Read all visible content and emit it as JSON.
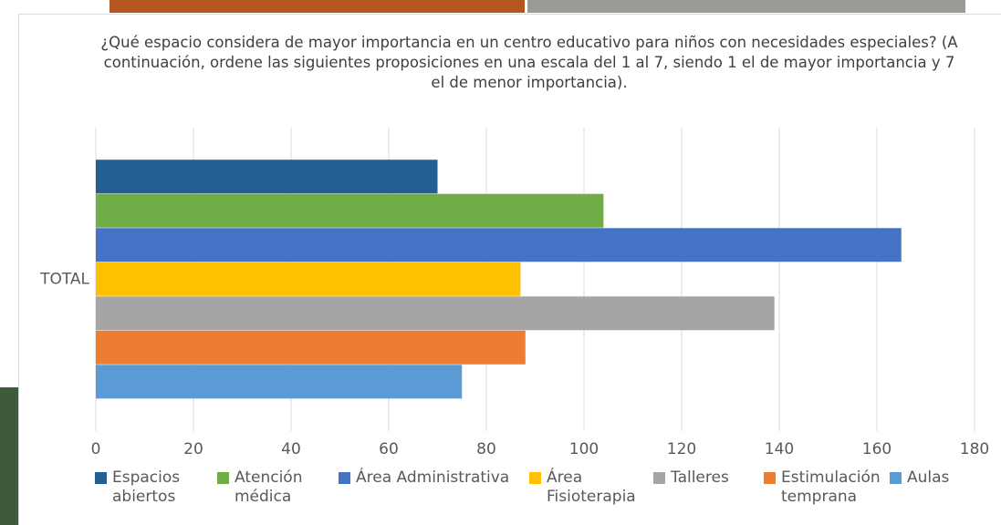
{
  "chart_data": {
    "type": "bar",
    "orientation": "horizontal",
    "title": "¿Qué espacio considera de mayor importancia en un centro educativo para niños con necesidades especiales? (A continuación, ordene las siguientes proposiciones en una escala del 1 al 7, siendo 1 el de mayor importancia y 7 el de menor importancia).",
    "categories": [
      "TOTAL"
    ],
    "series": [
      {
        "name": "Espacios abiertos",
        "color": "#255e91",
        "values": [
          70
        ]
      },
      {
        "name": "Atención médica",
        "color": "#70ad47",
        "values": [
          104
        ]
      },
      {
        "name": "Área Administrativa",
        "color": "#4472c4",
        "values": [
          165
        ]
      },
      {
        "name": "Área Fisioterapia",
        "color": "#ffc000",
        "values": [
          87
        ]
      },
      {
        "name": "Talleres",
        "color": "#a5a5a5",
        "values": [
          139
        ]
      },
      {
        "name": "Estimulación temprana",
        "color": "#ed7d31",
        "values": [
          88
        ]
      },
      {
        "name": "Aulas",
        "color": "#5b9bd5",
        "values": [
          75
        ]
      }
    ],
    "xlim": [
      0,
      180
    ],
    "xticks": [
      0,
      20,
      40,
      60,
      80,
      100,
      120,
      140,
      160,
      180
    ],
    "grid": true,
    "legend": "bottom"
  }
}
